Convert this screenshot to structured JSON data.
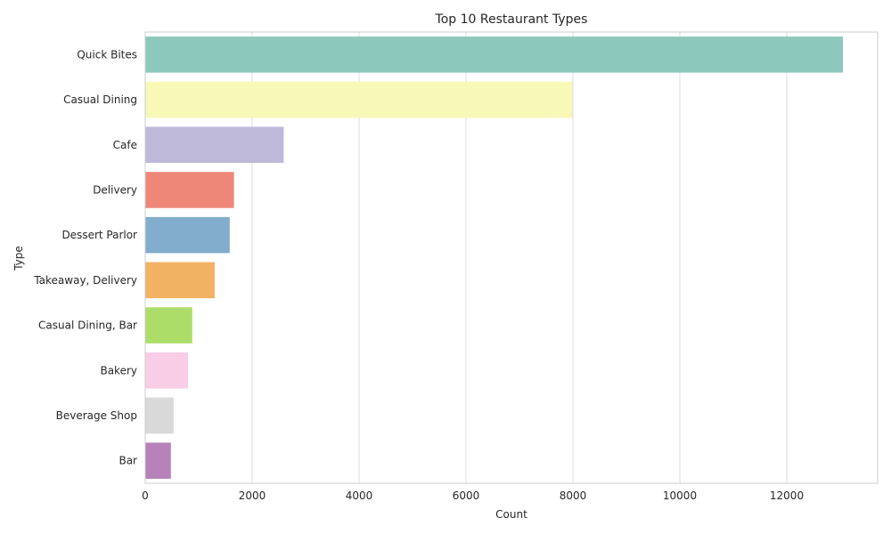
{
  "chart_data": {
    "type": "bar",
    "orientation": "horizontal",
    "title": "Top 10 Restaurant Types",
    "xlabel": "Count",
    "ylabel": "Type",
    "categories": [
      "Quick Bites",
      "Casual Dining",
      "Cafe",
      "Delivery",
      "Dessert Parlor",
      "Takeaway, Delivery",
      "Casual Dining, Bar",
      "Bakery",
      "Beverage Shop",
      "Bar"
    ],
    "values": [
      13050,
      7990,
      2590,
      1660,
      1580,
      1300,
      880,
      800,
      530,
      480
    ],
    "colors": [
      "#8dc8bd",
      "#f8f8b7",
      "#beb9d9",
      "#ee8778",
      "#82adcc",
      "#f2b263",
      "#addd69",
      "#f8cde5",
      "#d9d9d9",
      "#b682b9"
    ],
    "xlim": [
      0,
      13700
    ],
    "xticks": [
      0,
      2000,
      4000,
      6000,
      8000,
      10000,
      12000
    ],
    "grid": true,
    "legend": "none"
  }
}
